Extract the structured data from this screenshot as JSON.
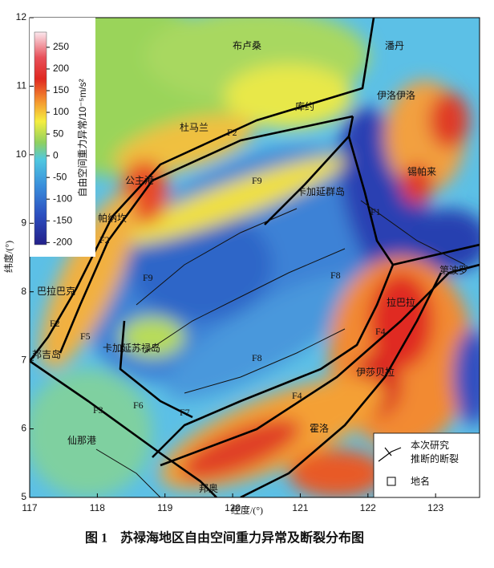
{
  "map": {
    "xlim": [
      117,
      123.65
    ],
    "ylim": [
      5,
      12
    ],
    "xticks": [
      117,
      118,
      119,
      120,
      121,
      122,
      123
    ],
    "yticks": [
      5,
      6,
      7,
      8,
      9,
      10,
      11,
      12
    ],
    "xlabel": "经度/(°)",
    "ylabel": "纬度/(°)",
    "colorbar": {
      "label": "自由空间重力异常/10⁻⁵m/s²",
      "lim": [
        -205,
        285
      ],
      "ticks": [
        250,
        200,
        150,
        100,
        50,
        0,
        -50,
        -100,
        -150,
        -200
      ]
    },
    "places": [
      "布卢桑",
      "潘丹",
      "伊洛伊洛",
      "库约",
      "杜马兰",
      "锡帕来",
      "公主港",
      "卡加延群岛",
      "帕纳坎",
      "巴拉巴克",
      "第波罗",
      "拉巴拉",
      "邦吉岛",
      "卡加延苏禄岛",
      "伊莎贝拉",
      "仙那港",
      "霍洛",
      "邦奥"
    ],
    "faults": [
      "F2",
      "F2",
      "F2",
      "F9",
      "F1",
      "F9",
      "F8",
      "F5",
      "F4",
      "F8",
      "F6",
      "F7",
      "F3",
      "F4"
    ],
    "legend": {
      "fault_line1": "本次研究",
      "fault_line2": "推断的断裂",
      "place": "地名"
    }
  },
  "caption": {
    "number": "图 1",
    "text": "苏禄海地区自由空间重力异常及断裂分布图"
  }
}
